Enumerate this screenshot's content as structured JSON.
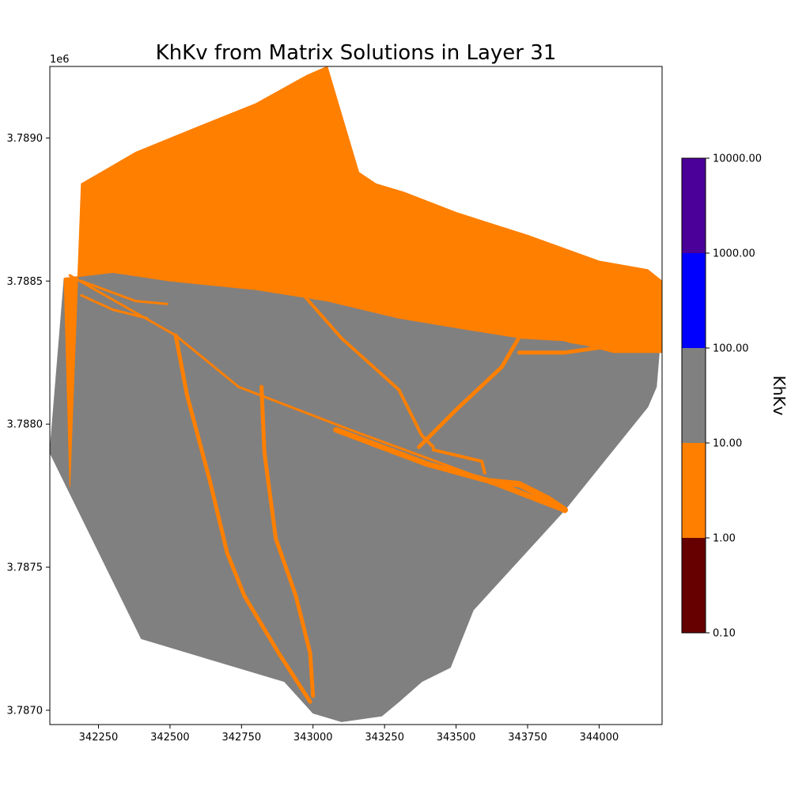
{
  "chart_data": {
    "type": "heatmap",
    "title": "KhKv from Matrix Solutions in Layer 31",
    "xlabel": "",
    "ylabel": "",
    "x_offset_label": "",
    "y_offset_label": "1e6",
    "xlim": [
      342080,
      344220
    ],
    "ylim": [
      3786950,
      3789250
    ],
    "xticks": [
      342250,
      342500,
      342750,
      343000,
      343250,
      343500,
      343750,
      344000
    ],
    "yticks": [
      {
        "value": 3787000,
        "label": "3.7870"
      },
      {
        "value": 3787500,
        "label": "3.7875"
      },
      {
        "value": 3788000,
        "label": "3.7880"
      },
      {
        "value": 3788500,
        "label": "3.7885"
      },
      {
        "value": 3789000,
        "label": "3.7890"
      }
    ],
    "grid": false,
    "colorbar": {
      "label": "KhKv",
      "scale": "log",
      "ticks": [
        "0.10",
        "1.00",
        "10.00",
        "100.00",
        "1000.00",
        "10000.00"
      ],
      "bins": [
        {
          "from": 0.1,
          "to": 1,
          "color": "#660000"
        },
        {
          "from": 1,
          "to": 10,
          "color": "#ff7f00"
        },
        {
          "from": 10,
          "to": 100,
          "color": "#808080"
        },
        {
          "from": 100,
          "to": 1000,
          "color": "#0000ff"
        },
        {
          "from": 1000,
          "to": 10000,
          "color": "#4b0099"
        }
      ]
    },
    "zones": [
      {
        "name": "",
        "khkv_bin": "10-100",
        "color": "#808080",
        "polygon": [
          [
            342130,
            3788510
          ],
          [
            342080,
            3787900
          ],
          [
            342095,
            3787870
          ],
          [
            342400,
            3787250
          ],
          [
            342900,
            3787100
          ],
          [
            343000,
            3786990
          ],
          [
            343100,
            3786960
          ],
          [
            343240,
            3786980
          ],
          [
            343300,
            3787030
          ],
          [
            343380,
            3787100
          ],
          [
            343480,
            3787150
          ],
          [
            343560,
            3787350
          ],
          [
            343880,
            3787700
          ],
          [
            344170,
            3788060
          ],
          [
            344200,
            3788130
          ],
          [
            344210,
            3788250
          ],
          [
            344050,
            3788250
          ],
          [
            343900,
            3788290
          ],
          [
            343730,
            3788300
          ],
          [
            343540,
            3788330
          ],
          [
            343300,
            3788370
          ],
          [
            343050,
            3788430
          ],
          [
            342800,
            3788470
          ],
          [
            342500,
            3788500
          ],
          [
            342300,
            3788530
          ]
        ]
      },
      {
        "name": "",
        "khkv_bin": "1-10",
        "color": "#ff7f00",
        "polygon": [
          [
            342130,
            3788510
          ],
          [
            342150,
            3787780
          ],
          [
            342190,
            3788840
          ],
          [
            342380,
            3788950
          ],
          [
            342600,
            3789040
          ],
          [
            342800,
            3789120
          ],
          [
            342980,
            3789220
          ],
          [
            343050,
            3789250
          ],
          [
            343160,
            3788880
          ],
          [
            343220,
            3788840
          ],
          [
            343320,
            3788810
          ],
          [
            343500,
            3788740
          ],
          [
            343750,
            3788660
          ],
          [
            344000,
            3788570
          ],
          [
            344170,
            3788540
          ],
          [
            344220,
            3788500
          ],
          [
            344220,
            3788250
          ],
          [
            344050,
            3788250
          ],
          [
            343900,
            3788290
          ],
          [
            343730,
            3788300
          ],
          [
            343540,
            3788330
          ],
          [
            343300,
            3788370
          ],
          [
            343050,
            3788430
          ],
          [
            342800,
            3788470
          ],
          [
            342500,
            3788500
          ],
          [
            342300,
            3788530
          ]
        ]
      }
    ],
    "faults": [
      {
        "khkv_bin": "1-10",
        "width": 3,
        "points": [
          [
            342150,
            3788520
          ],
          [
            342520,
            3788310
          ],
          [
            342740,
            3788130
          ],
          [
            343130,
            3787980
          ],
          [
            343620,
            3787800
          ],
          [
            343880,
            3787700
          ]
        ]
      },
      {
        "khkv_bin": "1-10",
        "width": 3,
        "points": [
          [
            342190,
            3788500
          ],
          [
            342380,
            3788430
          ],
          [
            342490,
            3788420
          ]
        ]
      },
      {
        "khkv_bin": "1-10",
        "width": 3,
        "points": [
          [
            342190,
            3788450
          ],
          [
            342300,
            3788400
          ],
          [
            342420,
            3788370
          ]
        ]
      },
      {
        "khkv_bin": "1-10",
        "width": 5,
        "points": [
          [
            342520,
            3788310
          ],
          [
            342560,
            3788100
          ],
          [
            342640,
            3787800
          ],
          [
            342700,
            3787550
          ],
          [
            342760,
            3787400
          ],
          [
            342880,
            3787200
          ],
          [
            342990,
            3787030
          ]
        ]
      },
      {
        "khkv_bin": "1-10",
        "width": 5,
        "points": [
          [
            342820,
            3788130
          ],
          [
            342830,
            3787900
          ],
          [
            342870,
            3787600
          ],
          [
            342940,
            3787400
          ],
          [
            342990,
            3787200
          ],
          [
            343000,
            3787050
          ]
        ]
      },
      {
        "khkv_bin": "1-10",
        "width": 4,
        "points": [
          [
            342950,
            3788470
          ],
          [
            343100,
            3788300
          ],
          [
            343300,
            3788120
          ],
          [
            343380,
            3787960
          ],
          [
            343420,
            3787920
          ]
        ]
      },
      {
        "khkv_bin": "1-10",
        "width": 5,
        "points": [
          [
            343370,
            3787920
          ],
          [
            343500,
            3788050
          ],
          [
            343660,
            3788200
          ],
          [
            343730,
            3788320
          ],
          [
            343790,
            3788370
          ]
        ]
      },
      {
        "khkv_bin": "1-10",
        "width": 7,
        "points": [
          [
            343080,
            3787980
          ],
          [
            343400,
            3787860
          ],
          [
            343620,
            3787800
          ],
          [
            343880,
            3787700
          ]
        ]
      },
      {
        "khkv_bin": "1-10",
        "width": 4,
        "points": [
          [
            343420,
            3787910
          ],
          [
            343590,
            3787870
          ],
          [
            343600,
            3787830
          ]
        ]
      },
      {
        "khkv_bin": "1-10",
        "width": 5,
        "points": [
          [
            343720,
            3788250
          ],
          [
            343880,
            3788250
          ],
          [
            344020,
            3788270
          ],
          [
            343900,
            3788290
          ],
          [
            343750,
            3788340
          ]
        ]
      },
      {
        "khkv_bin": "1-10",
        "width": 8,
        "points": [
          [
            343620,
            3787800
          ],
          [
            343720,
            3787790
          ],
          [
            343820,
            3787740
          ],
          [
            343880,
            3787700
          ]
        ]
      }
    ]
  }
}
